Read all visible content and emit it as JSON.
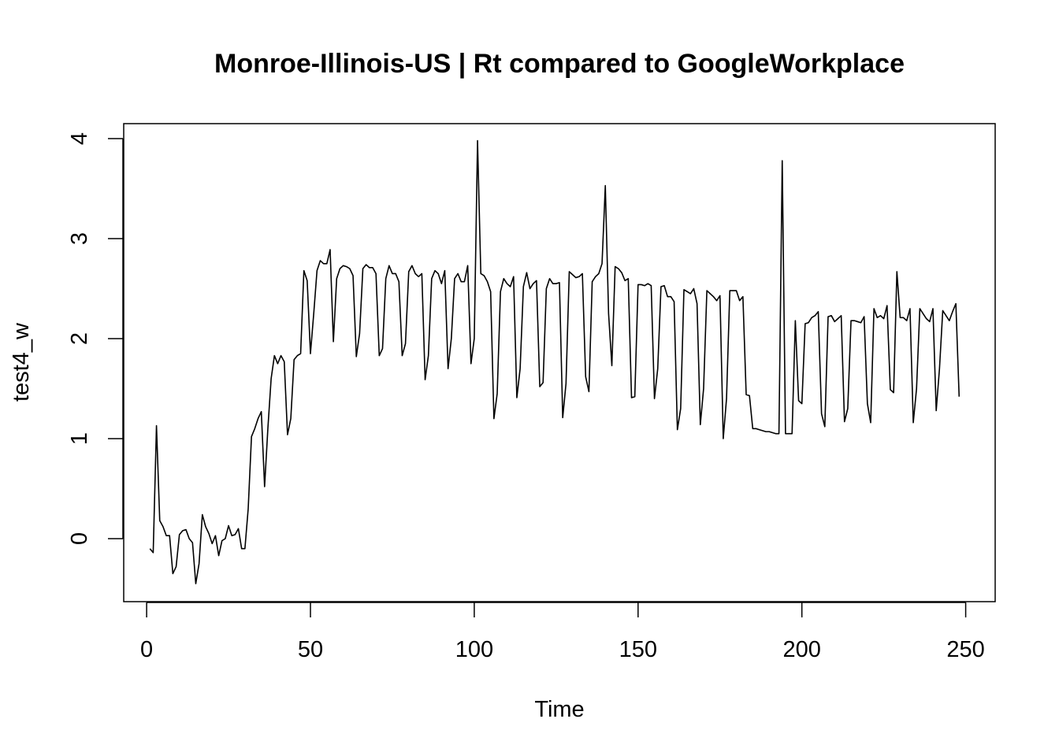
{
  "chart_data": {
    "type": "line",
    "title": "Monroe-Illinois-US | Rt compared to GoogleWorkplace",
    "xlabel": "Time",
    "ylabel": "test4_w",
    "xlim": [
      -7,
      259
    ],
    "ylim": [
      -0.63,
      4.15
    ],
    "xticks": [
      0,
      50,
      100,
      150,
      200,
      250
    ],
    "yticks": [
      0,
      1,
      2,
      3,
      4
    ],
    "grid": false,
    "legend": "none",
    "line_color": "#000000",
    "series": [
      {
        "x": [
          1,
          2,
          3,
          4,
          5,
          6,
          7,
          8,
          9,
          10,
          11,
          12,
          13,
          14,
          15,
          16,
          17,
          18,
          19,
          20,
          21,
          22,
          23,
          24,
          25,
          26,
          27,
          28,
          29,
          30,
          31,
          32,
          33,
          34,
          35,
          36,
          37,
          38,
          39,
          40,
          41,
          42,
          43,
          44,
          45,
          46,
          47,
          48,
          49,
          50,
          51,
          52,
          53,
          54,
          55,
          56,
          57,
          58,
          59,
          60,
          61,
          62,
          63,
          64,
          65,
          66,
          67,
          68,
          69,
          70,
          71,
          72,
          73,
          74,
          75,
          76,
          77,
          78,
          79,
          80,
          81,
          82,
          83,
          84,
          85,
          86,
          87,
          88,
          89,
          90,
          91,
          92,
          93,
          94,
          95,
          96,
          97,
          98,
          99,
          100,
          101,
          102,
          103,
          104,
          105,
          106,
          107,
          108,
          109,
          110,
          111,
          112,
          113,
          114,
          115,
          116,
          117,
          118,
          119,
          120,
          121,
          122,
          123,
          124,
          125,
          126,
          127,
          128,
          129,
          130,
          131,
          132,
          133,
          134,
          135,
          136,
          137,
          138,
          139,
          140,
          141,
          142,
          143,
          144,
          145,
          146,
          147,
          148,
          149,
          150,
          151,
          152,
          153,
          154,
          155,
          156,
          157,
          158,
          159,
          160,
          161,
          162,
          163,
          164,
          165,
          166,
          167,
          168,
          169,
          170,
          171,
          172,
          173,
          174,
          175,
          176,
          177,
          178,
          179,
          180,
          181,
          182,
          183,
          184,
          185,
          186,
          187,
          188,
          189,
          190,
          191,
          192,
          193,
          194,
          195,
          196,
          197,
          198,
          199,
          200,
          201,
          202,
          203,
          204,
          205,
          206,
          207,
          208,
          209,
          210,
          211,
          212,
          213,
          214,
          215,
          216,
          217,
          218,
          219,
          220,
          221,
          222,
          223,
          224,
          225,
          226,
          227,
          228,
          229,
          230,
          231,
          232,
          233,
          234,
          235,
          236,
          237,
          238,
          239,
          240,
          241,
          242,
          243,
          244,
          245,
          246,
          247,
          248
        ],
        "y": [
          -0.1,
          -0.14,
          1.13,
          0.18,
          0.12,
          0.03,
          0.03,
          -0.35,
          -0.28,
          0.04,
          0.08,
          0.09,
          0.0,
          -0.04,
          -0.45,
          -0.25,
          0.24,
          0.12,
          0.05,
          -0.05,
          0.03,
          -0.17,
          -0.02,
          0.0,
          0.13,
          0.03,
          0.04,
          0.1,
          -0.1,
          -0.1,
          0.3,
          1.02,
          1.1,
          1.2,
          1.27,
          0.52,
          1.1,
          1.6,
          1.83,
          1.75,
          1.83,
          1.77,
          1.04,
          1.2,
          1.79,
          1.83,
          1.85,
          2.68,
          2.58,
          1.85,
          2.25,
          2.68,
          2.78,
          2.75,
          2.75,
          2.89,
          1.97,
          2.6,
          2.7,
          2.73,
          2.72,
          2.7,
          2.63,
          1.82,
          2.05,
          2.7,
          2.74,
          2.71,
          2.71,
          2.65,
          1.83,
          1.9,
          2.6,
          2.73,
          2.65,
          2.65,
          2.57,
          1.83,
          1.95,
          2.67,
          2.73,
          2.65,
          2.62,
          2.65,
          1.59,
          1.83,
          2.6,
          2.68,
          2.65,
          2.55,
          2.68,
          1.7,
          2.0,
          2.6,
          2.65,
          2.57,
          2.57,
          2.73,
          1.75,
          2.0,
          3.98,
          2.65,
          2.63,
          2.57,
          2.47,
          1.2,
          1.45,
          2.47,
          2.6,
          2.55,
          2.52,
          2.62,
          1.41,
          1.7,
          2.52,
          2.66,
          2.5,
          2.55,
          2.58,
          1.52,
          1.56,
          2.5,
          2.6,
          2.55,
          2.55,
          2.56,
          1.21,
          1.55,
          2.67,
          2.64,
          2.61,
          2.62,
          2.65,
          1.62,
          1.47,
          2.57,
          2.62,
          2.65,
          2.75,
          3.53,
          2.25,
          1.73,
          2.72,
          2.7,
          2.66,
          2.58,
          2.6,
          1.41,
          1.42,
          2.54,
          2.54,
          2.53,
          2.55,
          2.53,
          1.4,
          1.7,
          2.52,
          2.53,
          2.42,
          2.42,
          2.37,
          1.09,
          1.3,
          2.49,
          2.47,
          2.45,
          2.5,
          2.35,
          1.14,
          1.5,
          2.48,
          2.45,
          2.42,
          2.38,
          2.43,
          1.0,
          1.4,
          2.48,
          2.48,
          2.48,
          2.38,
          2.42,
          1.44,
          1.43,
          1.1,
          1.1,
          1.09,
          1.08,
          1.07,
          1.07,
          1.06,
          1.05,
          1.05,
          3.78,
          1.05,
          1.05,
          1.05,
          2.18,
          1.38,
          1.35,
          2.15,
          2.16,
          2.21,
          2.23,
          2.27,
          1.25,
          1.12,
          2.22,
          2.23,
          2.17,
          2.2,
          2.23,
          1.17,
          1.3,
          2.18,
          2.18,
          2.17,
          2.16,
          2.22,
          1.35,
          1.16,
          2.3,
          2.21,
          2.23,
          2.2,
          2.33,
          1.49,
          1.46,
          2.67,
          2.21,
          2.21,
          2.18,
          2.3,
          1.16,
          1.5,
          2.3,
          2.25,
          2.2,
          2.17,
          2.3,
          1.28,
          1.7,
          2.28,
          2.23,
          2.18,
          2.27,
          2.35,
          1.42
        ]
      }
    ]
  }
}
